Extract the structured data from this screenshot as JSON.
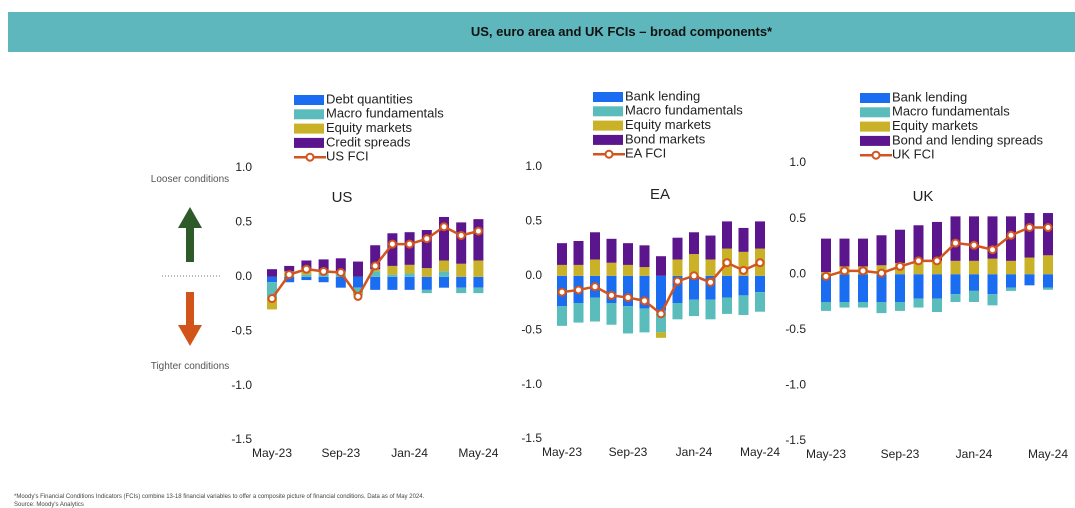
{
  "header": {
    "title": "US, euro area and UK FCIs – broad components*"
  },
  "annotations": {
    "looser": "Looser conditions",
    "tighter": "Tighter conditions"
  },
  "footnote": [
    "*Moody's Financial Conditions Indicators (FCIs) combine 13-18 financial variables to offer a composite picture of financial conditions. Data as of May 2024.",
    "Source: Moody's Analytics"
  ],
  "chart_data": [
    {
      "type": "bar",
      "title": "US",
      "categories": [
        "May-23",
        null,
        null,
        null,
        "Sep-23",
        null,
        null,
        null,
        "Jan-24",
        null,
        null,
        null,
        "May-24"
      ],
      "ylim": [
        -1.5,
        1.0
      ],
      "yticks": [
        {
          "value": 1,
          "label": "1.0"
        },
        {
          "value": 0.5,
          "label": "0.5"
        },
        {
          "value": 0,
          "label": "0.0"
        },
        {
          "value": -0.5,
          "label": "-0.5"
        },
        {
          "value": -1,
          "label": "-1.0"
        },
        {
          "value": -1.5,
          "label": "-1.5"
        }
      ],
      "series": [
        {
          "name": "Debt quantities",
          "color": "#1a6cf0",
          "values": [
            -0.05,
            -0.05,
            -0.03,
            -0.05,
            -0.1,
            -0.1,
            -0.12,
            -0.12,
            -0.12,
            -0.12,
            -0.1,
            -0.1,
            -0.1
          ]
        },
        {
          "name": "Macro fundamentals",
          "color": "#5bbcbc",
          "values": [
            -0.15,
            0.02,
            0.02,
            0.03,
            0.03,
            -0.05,
            0.05,
            0.02,
            0.03,
            -0.03,
            0.05,
            -0.05,
            -0.05
          ]
        },
        {
          "name": "Equity markets",
          "color": "#c9b227",
          "values": [
            -0.1,
            0.03,
            0.05,
            0.03,
            0.02,
            -0.02,
            0.02,
            0.08,
            0.08,
            0.08,
            0.1,
            0.12,
            0.15
          ]
        },
        {
          "name": "Credit spreads",
          "color": "#5b168e",
          "values": [
            0.07,
            0.05,
            0.08,
            0.1,
            0.12,
            0.14,
            0.22,
            0.3,
            0.3,
            0.35,
            0.4,
            0.38,
            0.38
          ]
        },
        {
          "name": "US FCI",
          "color": "#d2541e",
          "type": "line",
          "values": [
            -0.2,
            0.02,
            0.07,
            0.05,
            0.04,
            -0.18,
            0.1,
            0.3,
            0.3,
            0.35,
            0.46,
            0.38,
            0.42
          ]
        }
      ]
    },
    {
      "type": "bar",
      "title": "EA",
      "categories": [
        "May-23",
        null,
        null,
        null,
        "Sep-23",
        null,
        null,
        null,
        "Jan-24",
        null,
        null,
        null,
        "May-24"
      ],
      "ylim": [
        -1.5,
        1.0
      ],
      "yticks": [
        {
          "value": 1,
          "label": "1.0"
        },
        {
          "value": 0.5,
          "label": "0.5"
        },
        {
          "value": 0,
          "label": "0.0"
        },
        {
          "value": -0.5,
          "label": "-0.5"
        },
        {
          "value": -1,
          "label": "-1.0"
        },
        {
          "value": -1.5,
          "label": "-1.5"
        }
      ],
      "series": [
        {
          "name": "Bank lending",
          "color": "#1a6cf0",
          "values": [
            -0.28,
            -0.25,
            -0.2,
            -0.25,
            -0.28,
            -0.3,
            -0.32,
            -0.25,
            -0.22,
            -0.22,
            -0.2,
            -0.18,
            -0.15
          ]
        },
        {
          "name": "Macro fundamentals",
          "color": "#5bbcbc",
          "values": [
            -0.18,
            -0.18,
            -0.22,
            -0.2,
            -0.25,
            -0.22,
            -0.2,
            -0.15,
            -0.15,
            -0.18,
            -0.15,
            -0.18,
            -0.18
          ]
        },
        {
          "name": "Equity markets",
          "color": "#c9b227",
          "values": [
            0.1,
            0.1,
            0.15,
            0.12,
            0.1,
            0.08,
            -0.05,
            0.15,
            0.2,
            0.15,
            0.25,
            0.22,
            0.25
          ]
        },
        {
          "name": "Bond markets",
          "color": "#5b168e",
          "values": [
            0.2,
            0.22,
            0.25,
            0.22,
            0.2,
            0.2,
            0.18,
            0.2,
            0.2,
            0.22,
            0.25,
            0.22,
            0.25
          ]
        },
        {
          "name": "EA FCI",
          "color": "#d2541e",
          "type": "line",
          "values": [
            -0.15,
            -0.13,
            -0.1,
            -0.18,
            -0.2,
            -0.23,
            -0.35,
            -0.05,
            0.0,
            -0.06,
            0.12,
            0.05,
            0.12
          ]
        }
      ]
    },
    {
      "type": "bar",
      "title": "UK",
      "categories": [
        "May-23",
        null,
        null,
        null,
        "Sep-23",
        null,
        null,
        null,
        "Jan-24",
        null,
        null,
        null,
        "May-24"
      ],
      "ylim": [
        -1.5,
        1.0
      ],
      "yticks": [
        {
          "value": 1,
          "label": "1.0"
        },
        {
          "value": 0.5,
          "label": "0.5"
        },
        {
          "value": 0,
          "label": "0.0"
        },
        {
          "value": -0.5,
          "label": "-0.5"
        },
        {
          "value": -1,
          "label": "-1.0"
        },
        {
          "value": -1.5,
          "label": "-1.5"
        }
      ],
      "series": [
        {
          "name": "Bank lending",
          "color": "#1a6cf0",
          "values": [
            -0.25,
            -0.25,
            -0.25,
            -0.25,
            -0.25,
            -0.22,
            -0.22,
            -0.18,
            -0.15,
            -0.18,
            -0.12,
            -0.1,
            -0.12
          ]
        },
        {
          "name": "Macro fundamentals",
          "color": "#5bbcbc",
          "values": [
            -0.08,
            -0.05,
            -0.05,
            -0.1,
            -0.08,
            -0.08,
            -0.12,
            -0.07,
            -0.1,
            -0.1,
            -0.03,
            0.0,
            -0.02
          ]
        },
        {
          "name": "Equity markets",
          "color": "#c9b227",
          "values": [
            0.02,
            0.07,
            0.07,
            0.08,
            0.1,
            0.12,
            0.12,
            0.12,
            0.12,
            0.14,
            0.12,
            0.15,
            0.17
          ]
        },
        {
          "name": "Bond and lending spreads",
          "color": "#5b168e",
          "values": [
            0.3,
            0.25,
            0.25,
            0.27,
            0.3,
            0.32,
            0.35,
            0.4,
            0.4,
            0.38,
            0.4,
            0.4,
            0.38
          ]
        },
        {
          "name": "UK FCI",
          "color": "#d2541e",
          "type": "line",
          "values": [
            -0.02,
            0.03,
            0.03,
            0.01,
            0.07,
            0.12,
            0.12,
            0.28,
            0.26,
            0.22,
            0.35,
            0.42,
            0.42
          ]
        }
      ]
    }
  ]
}
